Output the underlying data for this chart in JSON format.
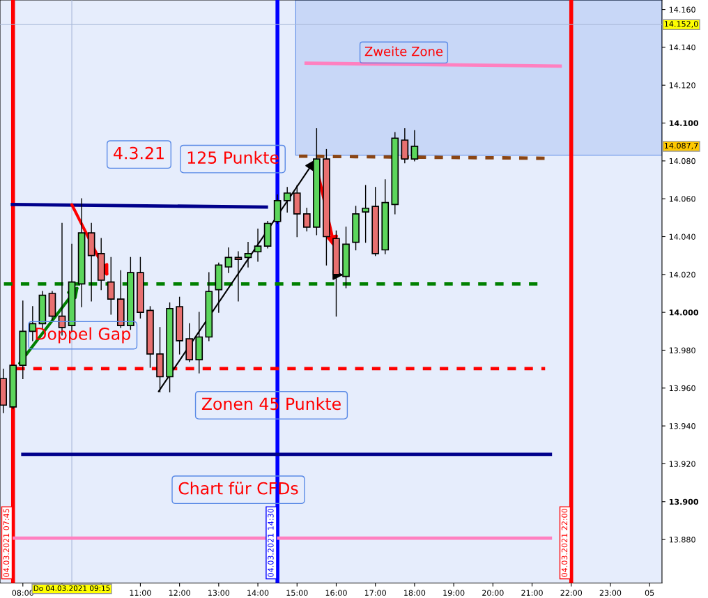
{
  "chart_data": {
    "type": "candlestick",
    "x": [
      "2021-03-04T07:30",
      "2021-03-04T07:45",
      "2021-03-04T08:00",
      "2021-03-04T08:15",
      "2021-03-04T08:30",
      "2021-03-04T08:45",
      "2021-03-04T09:00",
      "2021-03-04T09:15",
      "2021-03-04T09:30",
      "2021-03-04T09:45",
      "2021-03-04T10:00",
      "2021-03-04T10:15",
      "2021-03-04T10:30",
      "2021-03-04T10:45",
      "2021-03-04T11:00",
      "2021-03-04T11:15",
      "2021-03-04T11:30",
      "2021-03-04T11:45",
      "2021-03-04T12:00",
      "2021-03-04T12:15",
      "2021-03-04T12:30",
      "2021-03-04T12:45",
      "2021-03-04T13:00",
      "2021-03-04T13:15",
      "2021-03-04T13:30",
      "2021-03-04T13:45",
      "2021-03-04T14:00",
      "2021-03-04T14:15",
      "2021-03-04T14:30",
      "2021-03-04T14:45",
      "2021-03-04T15:00",
      "2021-03-04T15:15",
      "2021-03-04T15:30",
      "2021-03-04T15:45",
      "2021-03-04T16:00",
      "2021-03-04T16:15",
      "2021-03-04T16:30",
      "2021-03-04T16:45",
      "2021-03-04T17:00",
      "2021-03-04T17:15",
      "2021-03-04T17:30",
      "2021-03-04T17:45",
      "2021-03-04T18:00"
    ],
    "ohlc": [
      [
        13965,
        13970,
        13947,
        13951
      ],
      [
        13950,
        13972,
        13949,
        13972
      ],
      [
        13972,
        14006,
        13965,
        13990
      ],
      [
        13990,
        14003,
        13985,
        13994
      ],
      [
        13994,
        14011,
        13991,
        14009
      ],
      [
        14010,
        14011,
        13996,
        13998
      ],
      [
        13998,
        14047,
        13988,
        13992
      ],
      [
        13993,
        14036,
        13990,
        14016
      ],
      [
        14015,
        14060,
        14003,
        14042
      ],
      [
        14042,
        14047,
        14006,
        14030
      ],
      [
        14031,
        14039,
        14012,
        14017
      ],
      [
        14016,
        14029,
        13999,
        14007
      ],
      [
        14007,
        14022,
        13992,
        13993
      ],
      [
        13993,
        14029,
        13991,
        14021
      ],
      [
        14021,
        14029,
        13997,
        14000
      ],
      [
        14001,
        14003,
        13971,
        13978
      ],
      [
        13978,
        13992,
        13958,
        13966
      ],
      [
        13966,
        14005,
        13958,
        14002
      ],
      [
        14003,
        14008,
        13978,
        13985
      ],
      [
        13986,
        13994,
        13974,
        13975
      ],
      [
        13975,
        14000,
        13968,
        13987
      ],
      [
        13987,
        14021,
        13985,
        14011
      ],
      [
        14012,
        14026,
        14000,
        14025
      ],
      [
        14024,
        14034,
        14021,
        14029
      ],
      [
        14029,
        14032,
        14006,
        14028
      ],
      [
        14029,
        14037,
        14024,
        14031
      ],
      [
        14032,
        14044,
        14027,
        14035
      ],
      [
        14035,
        14048,
        14034,
        14047
      ],
      [
        14048,
        14062,
        14047,
        14059
      ],
      [
        14059,
        14066,
        14053,
        14063
      ],
      [
        14063,
        14067,
        14040,
        14052
      ],
      [
        14052,
        14055,
        14043,
        14045
      ],
      [
        14045,
        14097,
        14041,
        14081
      ],
      [
        14081,
        14086,
        14025,
        14040
      ],
      [
        14039,
        14043,
        13998,
        14020
      ],
      [
        14019,
        14045,
        14013,
        14036
      ],
      [
        14037,
        14056,
        14033,
        14052
      ],
      [
        14053,
        14067,
        14037,
        14055
      ],
      [
        14056,
        14066,
        14030,
        14031
      ],
      [
        14033,
        14070,
        14031,
        14058
      ],
      [
        14057,
        14095,
        14052,
        14092
      ],
      [
        14091,
        14097,
        14079,
        14081
      ],
      [
        14081,
        14096,
        14080,
        14087.7
      ]
    ],
    "colors": [
      "#e87070",
      "#5cd65c",
      "#5cd65c",
      "#5cd65c",
      "#5cd65c",
      "#e87070",
      "#e87070",
      "#5cd65c",
      "#5cd65c",
      "#e87070",
      "#e87070",
      "#e87070",
      "#e87070",
      "#5cd65c",
      "#e87070",
      "#e87070",
      "#e87070",
      "#5cd65c",
      "#e87070",
      "#e87070",
      "#5cd65c",
      "#5cd65c",
      "#5cd65c",
      "#5cd65c",
      "#e87070",
      "#5cd65c",
      "#5cd65c",
      "#5cd65c",
      "#5cd65c",
      "#5cd65c",
      "#e87070",
      "#e87070",
      "#5cd65c",
      "#e87070",
      "#e87070",
      "#5cd65c",
      "#5cd65c",
      "#5cd65c",
      "#e87070",
      "#5cd65c",
      "#5cd65c",
      "#e87070",
      "#5cd65c"
    ],
    "series": [
      {
        "type": "line",
        "x": [
          "2021-03-04T07:44",
          "2021-03-04T14:13"
        ],
        "values": [
          14057,
          14055.6
        ],
        "color": "#00008b",
        "line_style": "solid"
      },
      {
        "type": "line",
        "x": [
          "2021-03-04T07:31",
          "2021-03-04T21:10"
        ],
        "values": [
          14015,
          14015
        ],
        "color": "#008000",
        "line_style": "dashed"
      },
      {
        "type": "line",
        "x": [
          "2021-03-04T07:50",
          "2021-03-04T21:20"
        ],
        "values": [
          13970.3,
          13970.3
        ],
        "color": "#ff0000",
        "line_style": "dashed"
      },
      {
        "type": "line",
        "x": [
          "2021-03-04T08:00",
          "2021-03-04T21:28"
        ],
        "values": [
          13925,
          13925
        ],
        "color": "#00008b",
        "line_style": "solid"
      },
      {
        "type": "line",
        "x": [
          "2021-03-04T07:44",
          "2021-03-04T21:28"
        ],
        "values": [
          13880.7,
          13880.7
        ],
        "color": "#ff80c0",
        "line_style": "solid"
      },
      {
        "type": "line",
        "x": [
          "2021-03-04T15:14",
          "2021-03-04T21:43"
        ],
        "values": [
          14131.6,
          14130.1
        ],
        "color": "#ff80c0",
        "line_style": "solid"
      },
      {
        "type": "line",
        "x": [
          "2021-03-04T15:03",
          "2021-03-04T21:20"
        ],
        "values": [
          14082.5,
          14081.4
        ],
        "color": "#8b4513",
        "line_style": "dashed"
      }
    ],
    "ref_lines": [
      {
        "axis": "x",
        "value": "2021-03-04T07:45",
        "label": "04.03.2021 07:45",
        "color": "#ff0000"
      },
      {
        "axis": "x",
        "value": "2021-03-04T14:30",
        "label": "04.03.2021 14:30",
        "color": "#0000ff"
      },
      {
        "axis": "x",
        "value": "2021-03-04T22:00",
        "label": "04.03.2021 22:00",
        "color": "#ff0000"
      },
      {
        "axis": "x",
        "value": "2021-03-04T09:15",
        "label": "Do 04.03.2021 09:15",
        "color": "#a8b8d8"
      },
      {
        "axis": "y",
        "value": 14152,
        "label": "14.152,0",
        "color": "#a8b8d8"
      }
    ],
    "annotations": [
      "4.3.21",
      {
        "text": "125 Punkte",
        "x": "2021-03-04T15:30",
        "y": 14081
      },
      "Doppel Gap",
      "Zonen 45 Punkte",
      "Chart für CFDs",
      "Zweite Zone",
      "14.087,7"
    ],
    "xlim": [
      "2021-03-04T07:25",
      "2021-03-05T00:19"
    ],
    "ylim": [
      13857,
      14165
    ],
    "xticks": [
      {
        "value": "2021-03-04T08:00",
        "label": "08:00"
      },
      {
        "value": "2021-03-04T09:00",
        "label": null
      },
      {
        "value": "2021-03-04T10:00",
        "label": null
      },
      {
        "value": "2021-03-04T11:00",
        "label": "11:00"
      },
      {
        "value": "2021-03-04T12:00",
        "label": "12:00"
      },
      {
        "value": "2021-03-04T13:00",
        "label": "13:00"
      },
      {
        "value": "2021-03-04T14:00",
        "label": "14:00"
      },
      {
        "value": "2021-03-04T15:00",
        "label": "15:00"
      },
      {
        "value": "2021-03-04T16:00",
        "label": "16:00"
      },
      {
        "value": "2021-03-04T17:00",
        "label": "17:00"
      },
      {
        "value": "2021-03-04T18:00",
        "label": "18:00"
      },
      {
        "value": "2021-03-04T19:00",
        "label": "19:00"
      },
      {
        "value": "2021-03-04T20:00",
        "label": "20:00"
      },
      {
        "value": "2021-03-04T21:00",
        "label": "21:00"
      },
      {
        "value": "2021-03-04T22:00",
        "label": "22:00"
      },
      {
        "value": "2021-03-04T23:00",
        "label": "23:00"
      },
      {
        "value": "2021-03-05T00:00",
        "label": "05"
      }
    ],
    "yticks": [
      {
        "value": 13880,
        "label": "13.880"
      },
      {
        "value": 13900,
        "label": "13.900"
      },
      {
        "value": 13920,
        "label": "13.920"
      },
      {
        "value": 13940,
        "label": "13.940"
      },
      {
        "value": 13960,
        "label": "13.960"
      },
      {
        "value": 13980,
        "label": "13.980"
      },
      {
        "value": 14000,
        "label": "14.000"
      },
      {
        "value": 14020,
        "label": "14.020"
      },
      {
        "value": 14040,
        "label": "14.040"
      },
      {
        "value": 14060,
        "label": "14.060"
      },
      {
        "value": 14080,
        "label": "14.080"
      },
      {
        "value": 14100,
        "label": "14.100"
      },
      {
        "value": 14120,
        "label": "14.120"
      },
      {
        "value": 14140,
        "label": "14.140"
      },
      {
        "value": 14160,
        "label": "14.160"
      }
    ],
    "grid": false,
    "legend": false
  }
}
